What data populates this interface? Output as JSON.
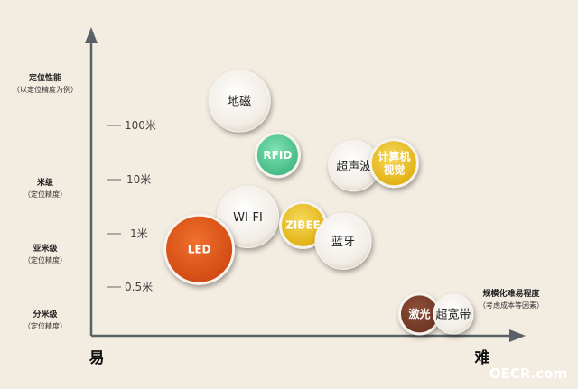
{
  "chart_data": {
    "type": "scatter",
    "y_axis": {
      "title": "定位性能",
      "subtitle": "（以定位精度为例）",
      "ticks": [
        "100米",
        "10米",
        "1米",
        "0.5米"
      ],
      "categories": [
        {
          "label": "米级",
          "sub": "（定位精度）"
        },
        {
          "label": "亚米级",
          "sub": "（定位精度）"
        },
        {
          "label": "分米级",
          "sub": "（定位精度）"
        }
      ]
    },
    "x_axis": {
      "title": "规模化难易程度",
      "subtitle": "（考虑成本等因素）",
      "easy_label": "易",
      "hard_label": "难"
    },
    "points": [
      {
        "label": "地磁",
        "x": 0.35,
        "y": 3.45,
        "style": "white",
        "r": 34
      },
      {
        "label": "RFID",
        "x": 0.44,
        "y": 2.45,
        "style": "green",
        "r": 24
      },
      {
        "label": "超声波",
        "x": 0.62,
        "y": 2.25,
        "style": "white",
        "r": 28
      },
      {
        "label": "计算机\n视觉",
        "x": 0.715,
        "y": 2.3,
        "style": "yellow",
        "r": 26
      },
      {
        "label": "WI-FI",
        "x": 0.37,
        "y": 1.3,
        "style": "white",
        "r": 34
      },
      {
        "label": "ZIBEE",
        "x": 0.5,
        "y": 1.15,
        "style": "yellow",
        "r": 25
      },
      {
        "label": "蓝牙",
        "x": 0.595,
        "y": 0.85,
        "style": "white",
        "r": 31
      },
      {
        "label": "LED",
        "x": 0.255,
        "y": 0.7,
        "style": "orange",
        "r": 38
      },
      {
        "label": "激光",
        "x": 0.775,
        "y": -0.5,
        "style": "brown",
        "r": 22
      },
      {
        "label": "超宽带",
        "x": 0.855,
        "y": -0.5,
        "style": "white",
        "r": 22
      }
    ]
  },
  "watermark": "OECR.com",
  "colors": {
    "background": "#f3ece1",
    "axis": "#5a6068",
    "green": "#4fc890",
    "yellow": "#e8bb1c",
    "orange": "#e0541a",
    "brown": "#7a3f2c",
    "white": "#f4f0ea"
  }
}
